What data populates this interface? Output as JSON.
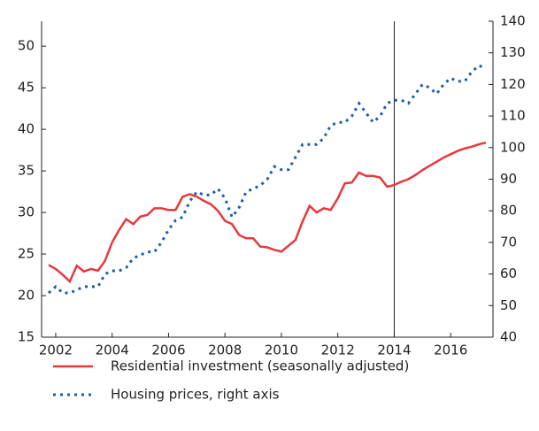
{
  "chart_data": {
    "type": "line",
    "x": [
      2001.75,
      2002,
      2002.25,
      2002.5,
      2002.75,
      2003,
      2003.25,
      2003.5,
      2003.75,
      2004,
      2004.25,
      2004.5,
      2004.75,
      2005,
      2005.25,
      2005.5,
      2005.75,
      2006,
      2006.25,
      2006.5,
      2006.75,
      2007,
      2007.25,
      2007.5,
      2007.75,
      2008,
      2008.25,
      2008.5,
      2008.75,
      2009,
      2009.25,
      2009.5,
      2009.75,
      2010,
      2010.25,
      2010.5,
      2010.75,
      2011,
      2011.25,
      2011.5,
      2011.75,
      2012,
      2012.25,
      2012.5,
      2012.75,
      2013,
      2013.25,
      2013.5,
      2013.75,
      2014,
      2014.25,
      2014.5,
      2014.75,
      2015,
      2015.25,
      2015.5,
      2015.75,
      2016,
      2016.25,
      2016.5,
      2016.75,
      2017,
      2017.25
    ],
    "series": [
      {
        "name": "Residential investment (seasonally adjusted)",
        "color": "#e8383d",
        "dash": false,
        "values": [
          23.7,
          23.2,
          22.5,
          21.7,
          23.6,
          22.9,
          23.2,
          23.0,
          24.2,
          26.4,
          27.9,
          29.2,
          28.6,
          29.5,
          29.7,
          30.5,
          30.5,
          30.3,
          30.3,
          31.9,
          32.2,
          31.9,
          31.4,
          31.0,
          30.2,
          29.0,
          28.6,
          27.3,
          26.9,
          26.9,
          25.9,
          25.8,
          25.5,
          25.3,
          26.0,
          26.7,
          28.9,
          30.8,
          30.0,
          30.5,
          30.3,
          31.7,
          33.5,
          33.6,
          34.8,
          34.4,
          34.4,
          34.2,
          33.1,
          33.3,
          33.7,
          34.0,
          34.5,
          35.1,
          35.6,
          36.1,
          36.6,
          37.0,
          37.4,
          37.7,
          37.9,
          38.2,
          38.4
        ]
      },
      {
        "name": "Housing prices, right axis",
        "color": "#1f5fa8",
        "dash": true,
        "axis": "y2",
        "values": [
          54,
          56,
          54,
          54,
          55,
          56,
          56,
          56,
          60,
          61,
          61,
          62,
          65,
          66,
          67,
          67,
          70,
          74,
          77,
          78,
          83,
          86,
          85,
          85,
          87,
          84,
          78,
          81,
          86,
          87,
          88,
          90,
          94,
          93,
          93,
          97,
          101,
          101,
          101,
          103,
          107,
          108,
          108,
          110,
          114,
          111,
          108,
          110,
          114,
          115,
          115,
          114,
          117,
          120,
          119,
          117,
          120,
          122,
          121,
          121,
          124,
          126,
          125
        ]
      }
    ],
    "xlim": [
      2001.5,
      2017.5
    ],
    "xticks": [
      2002,
      2004,
      2006,
      2008,
      2010,
      2012,
      2014,
      2016
    ],
    "ylim": [
      15,
      53
    ],
    "yticks": [
      15,
      20,
      25,
      30,
      35,
      40,
      45,
      50
    ],
    "y2lim": [
      40,
      140
    ],
    "y2ticks": [
      40,
      50,
      60,
      70,
      80,
      90,
      100,
      110,
      120,
      130,
      140
    ],
    "vlines": [
      2014
    ]
  }
}
